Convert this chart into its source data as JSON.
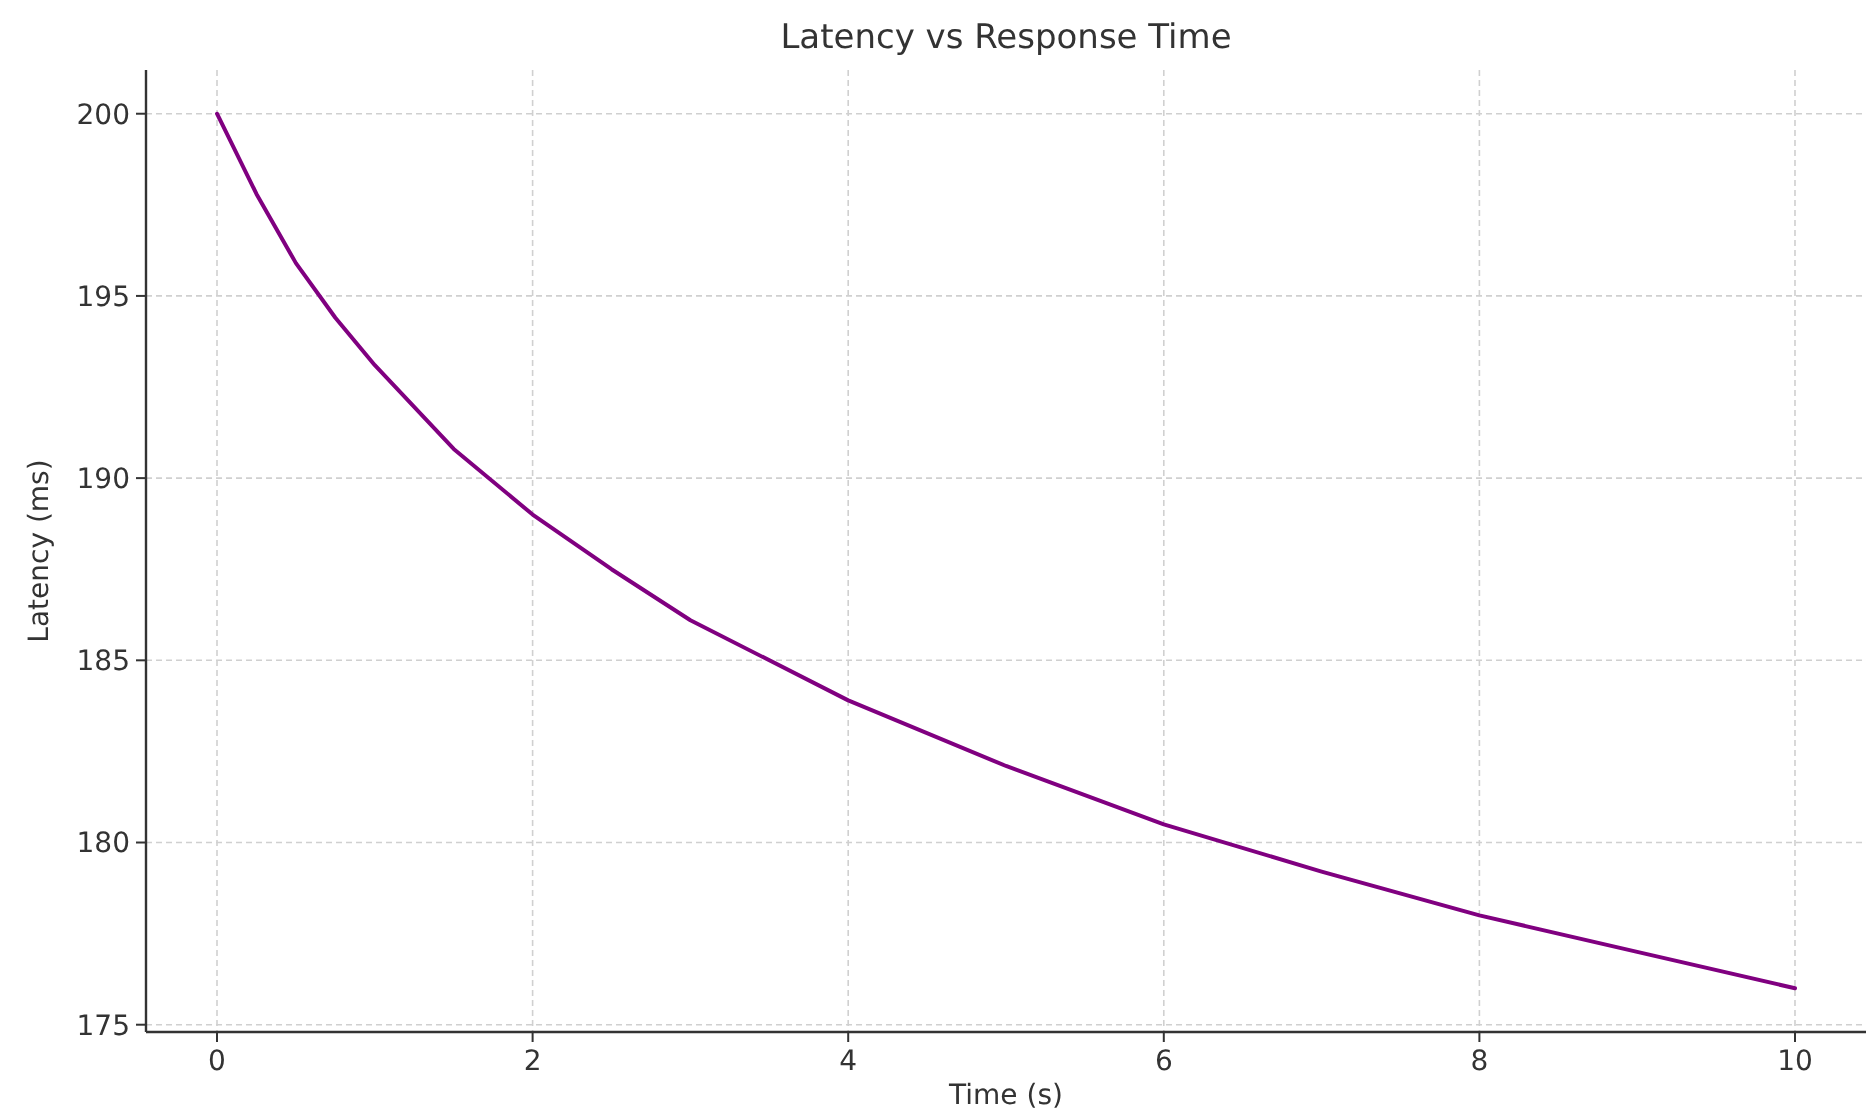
{
  "chart_data": {
    "type": "line",
    "title": "Latency vs Response Time",
    "xlabel": "Time (s)",
    "ylabel": "Latency (ms)",
    "x": [
      0,
      0.25,
      0.5,
      0.75,
      1,
      1.5,
      2,
      2.5,
      3,
      4,
      5,
      6,
      7,
      8,
      9,
      10
    ],
    "series": [
      {
        "color": "#800080",
        "values": [
          200,
          197.8,
          195.9,
          194.4,
          193.1,
          190.8,
          189.0,
          187.5,
          186.1,
          183.9,
          182.1,
          180.5,
          179.2,
          178.0,
          177.0,
          176.0
        ]
      }
    ],
    "xlim": [
      -0.45,
      10.45
    ],
    "ylim": [
      174.8,
      201.2
    ],
    "xticks": [
      0,
      2,
      4,
      6,
      8,
      10
    ],
    "yticks": [
      175,
      180,
      185,
      190,
      195,
      200
    ],
    "grid": true,
    "line_style": "solid"
  }
}
